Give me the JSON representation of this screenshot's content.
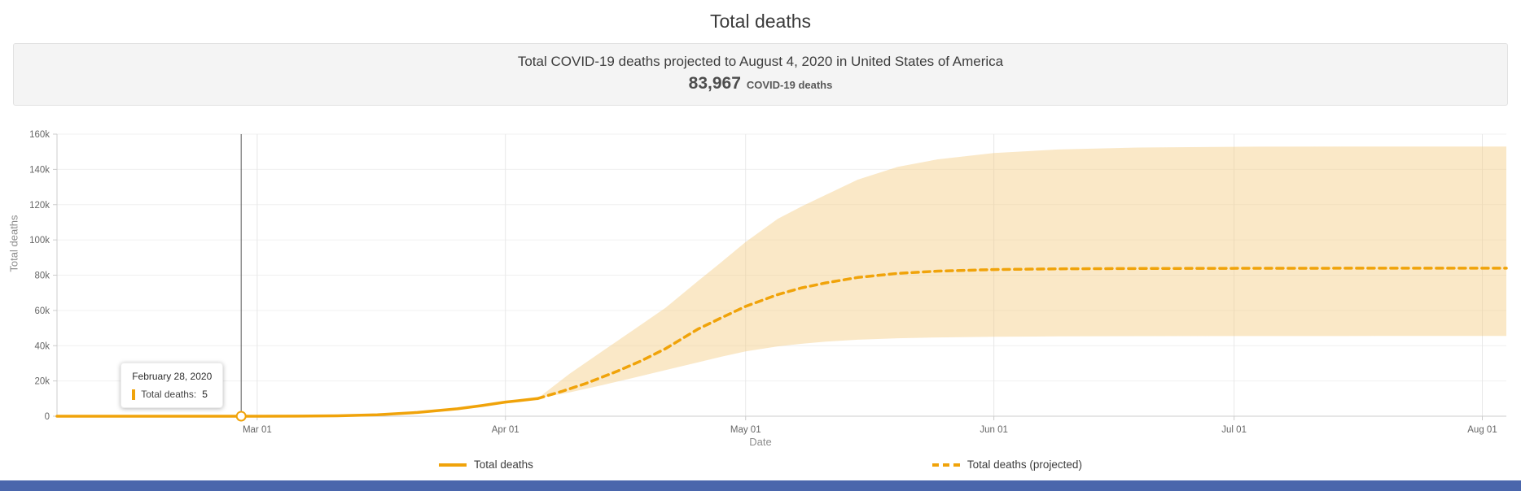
{
  "page": {
    "title": "Total deaths"
  },
  "summary": {
    "line": "Total COVID-19 deaths projected to August 4, 2020 in United States of America",
    "value": "83,967",
    "suffix": "COVID-19 deaths"
  },
  "tooltip": {
    "date": "February 28, 2020",
    "label": "Total deaths:",
    "value": "5"
  },
  "legend": {
    "observed": "Total deaths",
    "projected": "Total deaths (projected)"
  },
  "colors": {
    "line": "#F0A30A",
    "band": "rgba(244,205,130,0.45)",
    "cursor": "#555555",
    "footer_bar": "#4A66AC"
  },
  "chart_data": {
    "type": "line",
    "title": "Total deaths",
    "xlabel": "Date",
    "ylabel": "Total deaths",
    "ylim": [
      0,
      160000
    ],
    "x_domain": [
      0,
      181
    ],
    "x_unit": "days (day 0 = Feb 5, 2020; day 181 = Aug 4, 2020)",
    "x_ticks": [
      {
        "day": 25,
        "label": "Mar 01"
      },
      {
        "day": 56,
        "label": "Apr 01"
      },
      {
        "day": 86,
        "label": "May 01"
      },
      {
        "day": 117,
        "label": "Jun 01"
      },
      {
        "day": 147,
        "label": "Jul 01"
      },
      {
        "day": 178,
        "label": "Aug 01"
      }
    ],
    "y_ticks": [
      {
        "value": 0,
        "label": "0"
      },
      {
        "value": 20000,
        "label": "20k"
      },
      {
        "value": 40000,
        "label": "40k"
      },
      {
        "value": 60000,
        "label": "60k"
      },
      {
        "value": 80000,
        "label": "80k"
      },
      {
        "value": 100000,
        "label": "100k"
      },
      {
        "value": 120000,
        "label": "120k"
      },
      {
        "value": 140000,
        "label": "140k"
      },
      {
        "value": 160000,
        "label": "160k"
      }
    ],
    "series": [
      {
        "name": "Total deaths",
        "style": "solid",
        "points": [
          [
            0,
            0
          ],
          [
            8,
            0
          ],
          [
            16,
            0
          ],
          [
            21,
            2
          ],
          [
            23,
            5
          ],
          [
            25,
            10
          ],
          [
            30,
            60
          ],
          [
            35,
            250
          ],
          [
            40,
            800
          ],
          [
            45,
            2100
          ],
          [
            50,
            4200
          ],
          [
            53,
            6000
          ],
          [
            56,
            8000
          ],
          [
            58,
            9000
          ],
          [
            60,
            10000
          ]
        ]
      },
      {
        "name": "Total deaths (projected)",
        "style": "dashed",
        "points": [
          [
            60,
            10000
          ],
          [
            63,
            14000
          ],
          [
            66,
            18500
          ],
          [
            70,
            25600
          ],
          [
            73,
            31500
          ],
          [
            76,
            38300
          ],
          [
            80,
            49300
          ],
          [
            83,
            55900
          ],
          [
            86,
            62300
          ],
          [
            90,
            69000
          ],
          [
            93,
            72800
          ],
          [
            96,
            75600
          ],
          [
            100,
            78700
          ],
          [
            105,
            81000
          ],
          [
            110,
            82300
          ],
          [
            117,
            83200
          ],
          [
            125,
            83600
          ],
          [
            135,
            83800
          ],
          [
            150,
            83900
          ],
          [
            165,
            83950
          ],
          [
            181,
            83967
          ]
        ]
      }
    ],
    "uncertainty_band": {
      "upper": [
        [
          60,
          10000
        ],
        [
          64,
          24000
        ],
        [
          68,
          36500
        ],
        [
          72,
          49000
        ],
        [
          76,
          61500
        ],
        [
          80,
          76500
        ],
        [
          83,
          87500
        ],
        [
          86,
          98800
        ],
        [
          90,
          111900
        ],
        [
          93,
          119000
        ],
        [
          96,
          125500
        ],
        [
          100,
          134200
        ],
        [
          105,
          141400
        ],
        [
          110,
          145700
        ],
        [
          117,
          149300
        ],
        [
          125,
          151300
        ],
        [
          135,
          152400
        ],
        [
          150,
          152900
        ],
        [
          165,
          153000
        ],
        [
          181,
          153000
        ]
      ],
      "lower": [
        [
          60,
          10000
        ],
        [
          64,
          13500
        ],
        [
          68,
          17500
        ],
        [
          72,
          21800
        ],
        [
          76,
          26200
        ],
        [
          80,
          30500
        ],
        [
          83,
          33800
        ],
        [
          86,
          36800
        ],
        [
          90,
          39600
        ],
        [
          93,
          41100
        ],
        [
          96,
          42300
        ],
        [
          100,
          43400
        ],
        [
          105,
          44200
        ],
        [
          110,
          44700
        ],
        [
          117,
          45100
        ],
        [
          125,
          45300
        ],
        [
          135,
          45400
        ],
        [
          150,
          45450
        ],
        [
          165,
          45500
        ],
        [
          181,
          45500
        ]
      ]
    },
    "cursor": {
      "day": 23,
      "value": 5
    }
  }
}
